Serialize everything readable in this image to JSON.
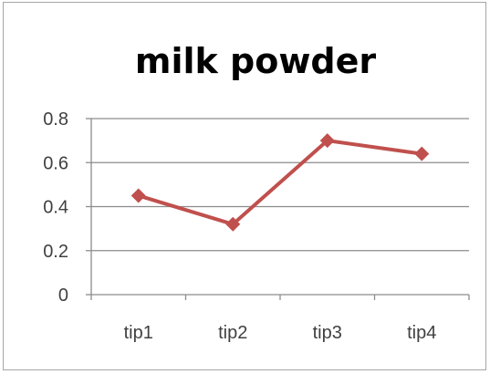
{
  "chart_data": {
    "type": "line",
    "title": "milk powder",
    "categories": [
      "tip1",
      "tip2",
      "tip3",
      "tip4"
    ],
    "series": [
      {
        "values": [
          0.45,
          0.32,
          0.7,
          0.64
        ],
        "color": "#c0504d",
        "marker": "diamond"
      }
    ],
    "ylim": [
      0,
      0.8
    ],
    "yticks": [
      "0",
      "0.2",
      "0.4",
      "0.6",
      "0.8"
    ],
    "yticks_values": [
      0,
      0.2,
      0.4,
      0.6,
      0.8
    ],
    "grid": true,
    "legend": "none"
  }
}
